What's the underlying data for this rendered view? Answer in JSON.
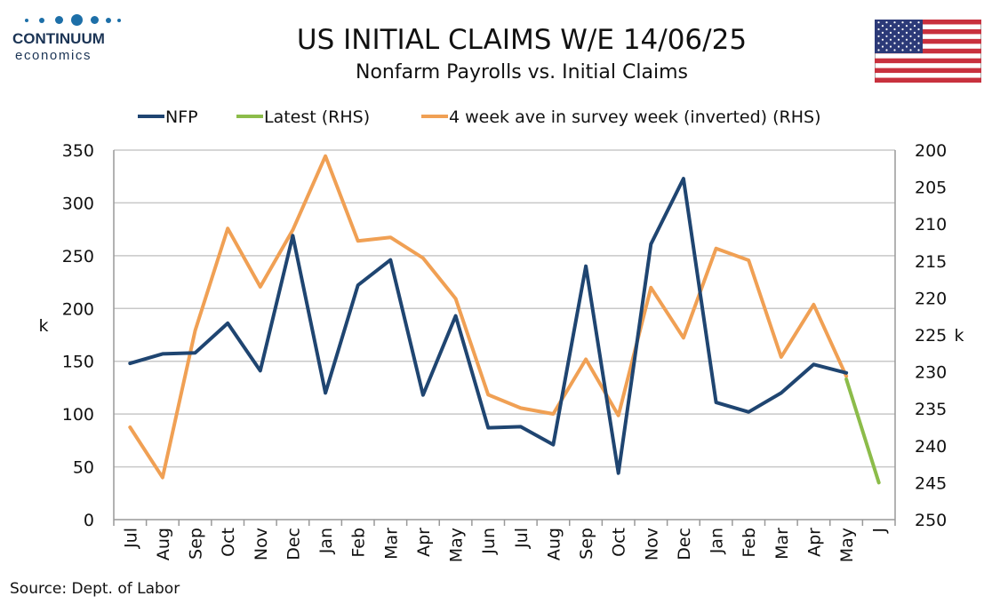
{
  "logo": {
    "top": "CONTINUUM",
    "bottom": "economics"
  },
  "header": {
    "title": "US INITIAL CLAIMS W/E 14/06/25",
    "subtitle": "Nonfarm Payrolls vs. Initial Claims"
  },
  "source": "Source: Dept. of Labor",
  "colors": {
    "nfp": "#1f4571",
    "latest": "#8cbc4a",
    "claims": "#f0a054",
    "grid": "#c8c8c8",
    "axis": "#999999"
  },
  "chart_data": {
    "type": "line",
    "categories": [
      "Jul",
      "Aug",
      "Sep",
      "Oct",
      "Nov",
      "Dec",
      "Jan",
      "Feb",
      "Mar",
      "Apr",
      "May",
      "Jun",
      "Jul",
      "Aug",
      "Sep",
      "Oct",
      "Nov",
      "Dec",
      "Jan",
      "Feb",
      "Mar",
      "Apr",
      "May",
      "J"
    ],
    "left_axis": {
      "label": "k",
      "min": 0,
      "max": 350,
      "ticks": [
        0,
        50,
        100,
        150,
        200,
        250,
        300,
        350
      ]
    },
    "right_axis": {
      "label": "k",
      "min": 200,
      "max": 250,
      "inverted": true,
      "ticks": [
        200,
        205,
        210,
        215,
        220,
        225,
        230,
        235,
        240,
        245,
        250
      ]
    },
    "legend_position": "top",
    "series": [
      {
        "name": "NFP",
        "axis": "left",
        "color_key": "nfp",
        "values": [
          148,
          157,
          158,
          186,
          141,
          269,
          120,
          222,
          246,
          118,
          193,
          87,
          88,
          71,
          240,
          44,
          261,
          323,
          111,
          102,
          120,
          147,
          139,
          null
        ]
      },
      {
        "name": "Latest (RHS)",
        "axis": "right",
        "color_key": "latest",
        "values": [
          null,
          null,
          null,
          null,
          null,
          null,
          null,
          null,
          null,
          null,
          null,
          null,
          null,
          null,
          null,
          null,
          null,
          null,
          null,
          null,
          null,
          null,
          231,
          245
        ]
      },
      {
        "name": "4 week ave in survey week (inverted) (RHS)",
        "axis": "right",
        "color_key": "claims",
        "values": [
          237.5,
          244.3,
          224.4,
          210.6,
          218.5,
          210.8,
          200.8,
          212.3,
          211.8,
          214.6,
          220.1,
          233.1,
          234.9,
          235.7,
          228.3,
          235.9,
          218.6,
          225.4,
          213.3,
          214.9,
          228.0,
          220.9,
          230.6,
          null
        ]
      }
    ]
  }
}
